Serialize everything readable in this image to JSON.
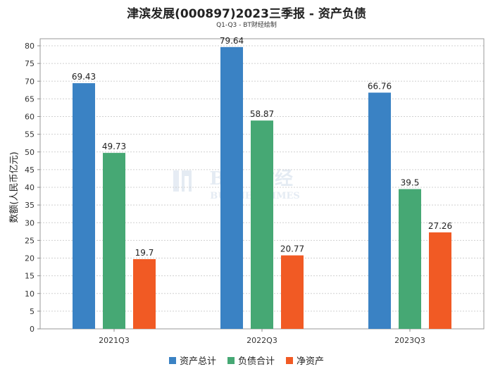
{
  "chart_data": {
    "type": "bar",
    "title": "津滨发展(000897)2023三季报 - 资产负债",
    "subtitle": "Q1-Q3 - BT财经绘制",
    "ylabel": "数额(人民币亿元)",
    "xlabel": "",
    "ylim": [
      0,
      80
    ],
    "ytick_step": 5,
    "grid": true,
    "legend_position": "bottom",
    "watermark": "BT财经 BUSINESSTIMES",
    "categories": [
      "2021Q3",
      "2022Q3",
      "2023Q3"
    ],
    "series": [
      {
        "name": "资产总计",
        "color": "#3a82c4",
        "values": [
          69.43,
          79.64,
          66.76
        ],
        "labels": [
          "69.43",
          "79.64",
          "66.76"
        ]
      },
      {
        "name": "负债合计",
        "color": "#46a874",
        "values": [
          49.73,
          58.87,
          39.5
        ],
        "labels": [
          "49.73",
          "58.87",
          "39.5"
        ]
      },
      {
        "name": "净资产",
        "color": "#f15a24",
        "values": [
          19.7,
          20.77,
          27.26
        ],
        "labels": [
          "19.7",
          "20.77",
          "27.26"
        ]
      }
    ]
  }
}
